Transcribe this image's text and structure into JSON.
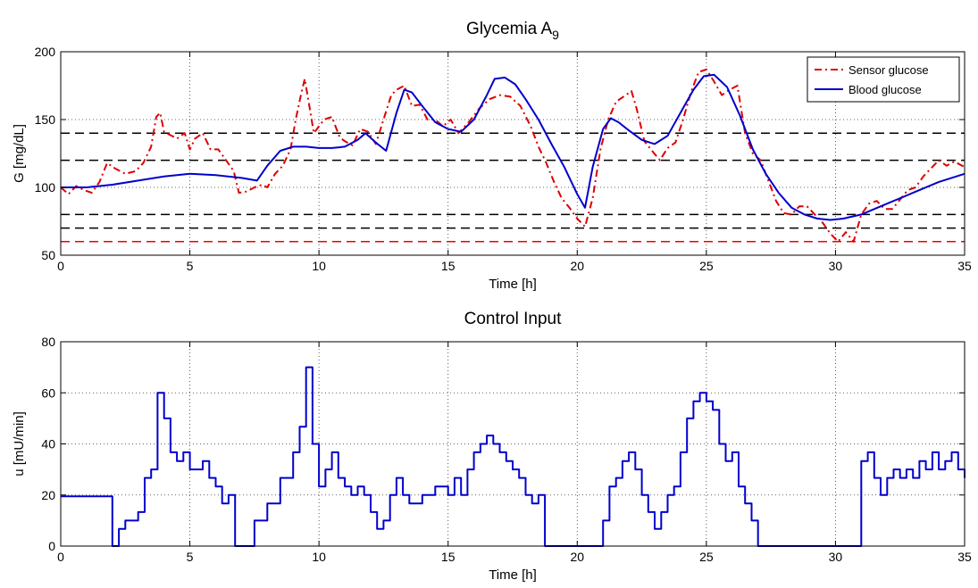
{
  "chart_data": [
    {
      "type": "line",
      "title": "Glycemia A",
      "title_subscript": "9",
      "xlabel": "Time [h]",
      "ylabel": "G [mg/dL]",
      "xlim": [
        0,
        35
      ],
      "ylim": [
        50,
        200
      ],
      "xticks": [
        0,
        5,
        10,
        15,
        20,
        25,
        30,
        35
      ],
      "yticks": [
        50,
        100,
        150,
        200
      ],
      "grid": true,
      "legend_position": "top-right",
      "series": [
        {
          "name": "Sensor glucose",
          "color": "#dd0000",
          "style": "dash-dot",
          "x": [
            0,
            0.3,
            0.6,
            0.9,
            1.2,
            1.5,
            1.8,
            2.1,
            2.5,
            2.9,
            3.2,
            3.5,
            3.7,
            3.85,
            4.0,
            4.2,
            4.5,
            4.8,
            5.0,
            5.2,
            5.5,
            5.8,
            6.1,
            6.4,
            6.7,
            6.9,
            7.2,
            7.5,
            7.8,
            8.0,
            8.3,
            8.6,
            8.9,
            9.1,
            9.3,
            9.45,
            9.6,
            9.8,
            10.0,
            10.2,
            10.5,
            10.8,
            11.0,
            11.3,
            11.6,
            11.9,
            12.2,
            12.5,
            12.8,
            13.0,
            13.3,
            13.6,
            13.9,
            14.2,
            14.5,
            14.8,
            15.1,
            15.4,
            15.8,
            16.2,
            16.6,
            17.0,
            17.4,
            17.8,
            18.2,
            18.5,
            18.8,
            19.1,
            19.4,
            19.7,
            20.0,
            20.3,
            20.6,
            20.9,
            21.2,
            21.5,
            21.8,
            22.1,
            22.3,
            22.6,
            22.9,
            23.2,
            23.5,
            23.8,
            24.1,
            24.4,
            24.7,
            25.0,
            25.3,
            25.6,
            25.9,
            26.2,
            26.5,
            26.8,
            27.1,
            27.4,
            27.7,
            28.0,
            28.3,
            28.6,
            28.9,
            29.2,
            29.5,
            29.8,
            30.1,
            30.4,
            30.7,
            31.0,
            31.3,
            31.6,
            31.9,
            32.2,
            32.5,
            32.8,
            33.1,
            33.4,
            33.7,
            34.0,
            34.3,
            34.6,
            35.0
          ],
          "values": [
            100,
            95,
            101,
            98,
            96,
            104,
            118,
            114,
            110,
            112,
            118,
            130,
            152,
            155,
            141,
            139,
            136,
            140,
            128,
            136,
            140,
            128,
            128,
            120,
            112,
            96,
            97,
            100,
            102,
            100,
            110,
            116,
            128,
            150,
            168,
            180,
            163,
            140,
            145,
            150,
            152,
            137,
            134,
            131,
            143,
            141,
            132,
            150,
            168,
            172,
            175,
            160,
            161,
            150,
            150,
            145,
            150,
            140,
            148,
            158,
            165,
            168,
            167,
            160,
            145,
            130,
            118,
            104,
            92,
            85,
            77,
            71,
            92,
            128,
            150,
            163,
            167,
            171,
            158,
            134,
            127,
            120,
            129,
            133,
            150,
            170,
            185,
            187,
            178,
            168,
            172,
            175,
            140,
            125,
            120,
            105,
            90,
            81,
            80,
            86,
            86,
            80,
            74,
            66,
            60,
            67,
            60,
            80,
            88,
            90,
            84,
            84,
            91,
            98,
            100,
            108,
            114,
            120,
            116,
            119,
            115
          ],
          "max_value_note": "peak near 187 at t=25"
        },
        {
          "name": "Blood glucose",
          "color": "#0000cc",
          "style": "solid",
          "x": [
            0,
            1,
            2,
            3,
            4,
            5,
            6,
            7,
            7.6,
            8.0,
            8.5,
            9.0,
            9.5,
            10.0,
            10.5,
            11.0,
            11.5,
            11.8,
            12.2,
            12.6,
            13.0,
            13.3,
            13.6,
            14.0,
            14.5,
            15.0,
            15.5,
            16.0,
            16.5,
            16.8,
            17.2,
            17.6,
            18.0,
            18.5,
            19.0,
            19.5,
            20.0,
            20.3,
            20.6,
            21.0,
            21.3,
            21.6,
            22.0,
            22.5,
            23.0,
            23.5,
            24.0,
            24.5,
            24.9,
            25.3,
            25.8,
            26.3,
            26.8,
            27.3,
            27.8,
            28.3,
            28.8,
            29.3,
            29.8,
            30.3,
            31.0,
            32.0,
            33.0,
            34.0,
            35.0
          ],
          "values": [
            100,
            100,
            102,
            105,
            108,
            110,
            109,
            107,
            105,
            116,
            127,
            130,
            130,
            129,
            129,
            130,
            135,
            140,
            133,
            127,
            155,
            172,
            170,
            160,
            148,
            143,
            141,
            150,
            168,
            180,
            181,
            176,
            165,
            150,
            132,
            115,
            95,
            85,
            115,
            143,
            151,
            148,
            142,
            135,
            132,
            138,
            155,
            172,
            182,
            183,
            174,
            153,
            128,
            110,
            96,
            85,
            80,
            77,
            76,
            77,
            80,
            88,
            96,
            104,
            110
          ]
        }
      ],
      "reference_lines": [
        {
          "y": 140,
          "color": "#000000",
          "style": "dashed"
        },
        {
          "y": 120,
          "color": "#000000",
          "style": "dashed"
        },
        {
          "y": 80,
          "color": "#000000",
          "style": "dashed"
        },
        {
          "y": 70,
          "color": "#000000",
          "style": "dashed"
        },
        {
          "y": 60,
          "color": "#ee0000",
          "style": "dashed"
        }
      ]
    },
    {
      "type": "line",
      "step": true,
      "title": "Control Input",
      "xlabel": "Time [h]",
      "ylabel": "u [mU/min]",
      "xlim": [
        0,
        35
      ],
      "ylim": [
        0,
        80
      ],
      "xticks": [
        0,
        5,
        10,
        15,
        20,
        25,
        30,
        35
      ],
      "yticks": [
        0,
        20,
        40,
        60,
        80
      ],
      "grid": true,
      "series": [
        {
          "color": "#0000cc",
          "x": [
            0,
            2.0,
            2.25,
            2.5,
            3.0,
            3.25,
            3.5,
            3.75,
            4.0,
            4.25,
            4.5,
            4.75,
            5.0,
            5.25,
            5.5,
            5.75,
            6.0,
            6.25,
            6.5,
            6.75,
            7.0,
            7.25,
            7.5,
            8.0,
            8.5,
            9.0,
            9.25,
            9.5,
            9.75,
            10.0,
            10.25,
            10.5,
            10.75,
            11.0,
            11.25,
            11.5,
            11.75,
            12.0,
            12.25,
            12.5,
            12.75,
            13.0,
            13.25,
            13.5,
            14.0,
            14.5,
            15.0,
            15.25,
            15.5,
            15.75,
            16.0,
            16.25,
            16.5,
            16.75,
            17.0,
            17.25,
            17.5,
            17.75,
            18.0,
            18.25,
            18.5,
            18.75,
            19.0,
            19.25,
            19.5,
            20.0,
            20.5,
            21.0,
            21.25,
            21.5,
            21.75,
            22.0,
            22.25,
            22.5,
            22.75,
            23.0,
            23.25,
            23.5,
            23.75,
            24.0,
            24.25,
            24.5,
            24.75,
            25.0,
            25.25,
            25.5,
            25.75,
            26.0,
            26.25,
            26.5,
            26.75,
            27.0,
            27.5,
            28.0,
            29.0,
            30.0,
            31.0,
            31.25,
            31.5,
            31.75,
            32.0,
            32.25,
            32.5,
            32.75,
            33.0,
            33.25,
            33.5,
            33.75,
            34.0,
            34.25,
            34.5,
            34.75,
            35.0
          ],
          "values": [
            19.5,
            0,
            6.7,
            10,
            13.3,
            26.7,
            30,
            60,
            50,
            36.7,
            33.3,
            36.7,
            30,
            30,
            33.3,
            26.7,
            23.3,
            16.7,
            20,
            0,
            0,
            0,
            10,
            16.7,
            26.7,
            36.7,
            46.7,
            70,
            40,
            23.3,
            30,
            36.7,
            26.7,
            23.3,
            20,
            23.3,
            20,
            13.3,
            6.7,
            10,
            20,
            26.7,
            20,
            16.7,
            20,
            23.3,
            20,
            26.7,
            20,
            30,
            36.7,
            40,
            43.3,
            40,
            36.7,
            33.3,
            30,
            26.7,
            20,
            16.7,
            20,
            0,
            0,
            0,
            0,
            0,
            0,
            10,
            23.3,
            26.7,
            33.3,
            36.7,
            30,
            20,
            13.3,
            6.7,
            13.3,
            20,
            23.3,
            36.7,
            50,
            56.7,
            60,
            56.7,
            53.3,
            40,
            33.3,
            36.7,
            23.3,
            16.7,
            10,
            0,
            0,
            0,
            0,
            0,
            33.3,
            36.7,
            26.7,
            20,
            26.7,
            30,
            26.7,
            30,
            26.7,
            33.3,
            30,
            36.7,
            30,
            33.3,
            36.7,
            30,
            26.7
          ]
        }
      ]
    }
  ]
}
